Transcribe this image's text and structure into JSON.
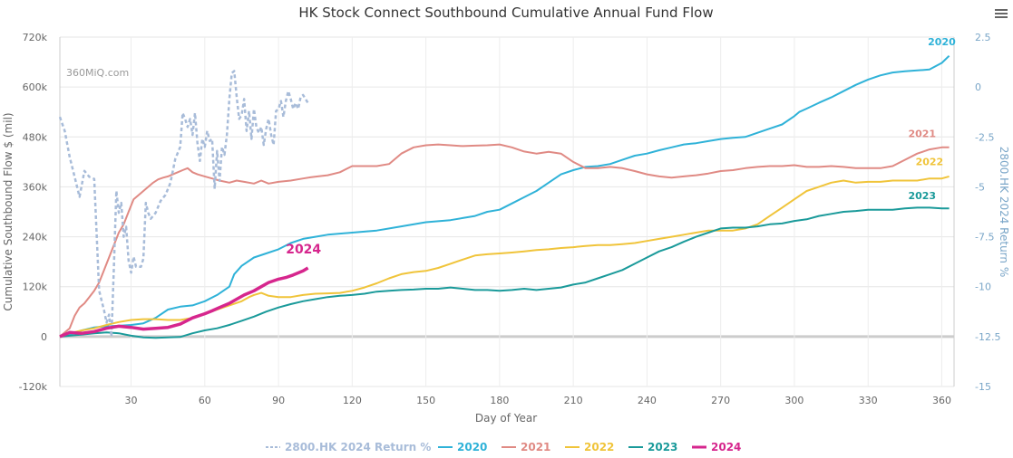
{
  "chart_data": {
    "type": "line",
    "title": "HK Stock Connect Southbound Cumulative Annual Fund Flow",
    "credit": "360MiQ.com",
    "xlabel": "Day of Year",
    "ylabel": "Cumulative Southbound Flow $ (mil)",
    "y2label": "2800.HK 2024 Return %",
    "xlim": [
      1,
      365
    ],
    "ylim": [
      -120000,
      720000
    ],
    "y2lim": [
      -15,
      2.5
    ],
    "x_ticks": [
      30,
      60,
      90,
      120,
      150,
      180,
      210,
      240,
      270,
      300,
      330,
      360
    ],
    "y_ticks": [
      {
        "v": -120000,
        "label": "-120k"
      },
      {
        "v": 0,
        "label": "0"
      },
      {
        "v": 120000,
        "label": "120k"
      },
      {
        "v": 240000,
        "label": "240k"
      },
      {
        "v": 360000,
        "label": "360k"
      },
      {
        "v": 480000,
        "label": "480k"
      },
      {
        "v": 600000,
        "label": "600k"
      },
      {
        "v": 720000,
        "label": "720k"
      }
    ],
    "y2_ticks": [
      {
        "v": -15,
        "label": "-15"
      },
      {
        "v": -12.5,
        "label": "-12.5"
      },
      {
        "v": -10,
        "label": "-10"
      },
      {
        "v": -7.5,
        "label": "-7.5"
      },
      {
        "v": -5,
        "label": "-5"
      },
      {
        "v": -2.5,
        "label": "-2.5"
      },
      {
        "v": 0,
        "label": "0"
      },
      {
        "v": 2.5,
        "label": "2.5"
      }
    ],
    "legend_position": "bottom-center",
    "series": [
      {
        "name": "2800.HK 2024 Return %",
        "axis": "right",
        "color": "#a8bcd9",
        "dash": true,
        "x": [
          1,
          3,
          5,
          7,
          9,
          11,
          13,
          15,
          17,
          19,
          20,
          21,
          22,
          23,
          24,
          25,
          26,
          27,
          28,
          29,
          30,
          31,
          32,
          33,
          34,
          35,
          36,
          37,
          38,
          40,
          42,
          44,
          46,
          48,
          50,
          51,
          52,
          53,
          54,
          55,
          56,
          57,
          58,
          59,
          60,
          61,
          62,
          63,
          64,
          65,
          66,
          67,
          68,
          69,
          70,
          71,
          72,
          73,
          74,
          75,
          76,
          77,
          78,
          79,
          80,
          81,
          82,
          83,
          84,
          85,
          86,
          87,
          88,
          89,
          90,
          91,
          92,
          93,
          94,
          95,
          96,
          97,
          98,
          99,
          100,
          101,
          102
        ],
        "y": [
          -1.5,
          -2.2,
          -3.5,
          -4.5,
          -5.5,
          -4.2,
          -4.5,
          -4.6,
          -10.2,
          -11.2,
          -11.8,
          -11.4,
          -12.5,
          -9.0,
          -5.2,
          -6.3,
          -5.8,
          -7.5,
          -7.0,
          -8.7,
          -9.3,
          -8.5,
          -9.0,
          -9.0,
          -9.0,
          -8.6,
          -5.8,
          -6.3,
          -6.6,
          -6.3,
          -5.7,
          -5.4,
          -4.8,
          -3.6,
          -3.0,
          -1.3,
          -1.6,
          -2.0,
          -1.6,
          -2.4,
          -1.3,
          -2.8,
          -3.7,
          -2.6,
          -3.0,
          -2.2,
          -2.7,
          -2.6,
          -5.1,
          -3.2,
          -4.7,
          -3.0,
          -3.4,
          -2.4,
          -0.6,
          0.7,
          0.8,
          -0.5,
          -1.6,
          -1.4,
          -0.6,
          -2.2,
          -1.2,
          -2.6,
          -1.1,
          -2.0,
          -2.3,
          -2.0,
          -2.9,
          -2.1,
          -1.6,
          -2.4,
          -2.9,
          -1.2,
          -1.1,
          -0.7,
          -1.5,
          -0.7,
          -0.2,
          -0.6,
          -1.1,
          -0.8,
          -1.1,
          -0.5,
          -0.4,
          -0.6,
          -0.8
        ]
      },
      {
        "name": "2020",
        "axis": "left",
        "color": "#2fb2d8",
        "x": [
          1,
          5,
          10,
          15,
          20,
          25,
          30,
          35,
          40,
          45,
          50,
          55,
          60,
          65,
          70,
          72,
          75,
          80,
          85,
          90,
          95,
          100,
          105,
          110,
          120,
          130,
          140,
          150,
          160,
          165,
          170,
          175,
          180,
          185,
          190,
          195,
          200,
          205,
          210,
          215,
          220,
          225,
          230,
          235,
          240,
          245,
          250,
          255,
          260,
          265,
          270,
          275,
          280,
          285,
          290,
          295,
          300,
          302,
          305,
          310,
          315,
          320,
          325,
          330,
          335,
          340,
          345,
          350,
          355,
          360,
          363
        ],
        "y": [
          0,
          5000,
          15000,
          22000,
          25000,
          26000,
          28000,
          32000,
          45000,
          65000,
          72000,
          75000,
          85000,
          100000,
          120000,
          150000,
          170000,
          190000,
          200000,
          210000,
          225000,
          235000,
          240000,
          245000,
          250000,
          255000,
          265000,
          275000,
          280000,
          285000,
          290000,
          300000,
          305000,
          320000,
          335000,
          350000,
          370000,
          390000,
          400000,
          408000,
          410000,
          415000,
          425000,
          435000,
          440000,
          448000,
          455000,
          462000,
          465000,
          470000,
          475000,
          478000,
          480000,
          490000,
          500000,
          510000,
          530000,
          540000,
          548000,
          562000,
          575000,
          590000,
          605000,
          618000,
          628000,
          635000,
          638000,
          640000,
          642000,
          658000,
          675000
        ]
      },
      {
        "name": "2021",
        "axis": "left",
        "color": "#e08a84",
        "x": [
          1,
          3,
          5,
          7,
          9,
          11,
          13,
          15,
          17,
          19,
          21,
          23,
          25,
          27,
          29,
          31,
          33,
          35,
          37,
          39,
          41,
          43,
          45,
          47,
          49,
          51,
          53,
          55,
          57,
          60,
          63,
          66,
          70,
          73,
          76,
          80,
          83,
          86,
          90,
          95,
          100,
          103,
          106,
          110,
          115,
          120,
          125,
          130,
          135,
          140,
          145,
          150,
          155,
          160,
          165,
          170,
          175,
          180,
          185,
          190,
          195,
          200,
          205,
          210,
          215,
          220,
          225,
          230,
          235,
          240,
          245,
          250,
          255,
          260,
          265,
          270,
          275,
          280,
          285,
          290,
          295,
          300,
          305,
          310,
          315,
          320,
          325,
          330,
          335,
          340,
          345,
          350,
          355,
          360,
          363
        ],
        "y": [
          0,
          10000,
          20000,
          50000,
          70000,
          80000,
          95000,
          110000,
          130000,
          160000,
          190000,
          220000,
          250000,
          270000,
          300000,
          330000,
          340000,
          350000,
          360000,
          370000,
          378000,
          382000,
          385000,
          390000,
          395000,
          400000,
          405000,
          395000,
          390000,
          385000,
          380000,
          375000,
          370000,
          375000,
          372000,
          368000,
          375000,
          368000,
          372000,
          375000,
          380000,
          383000,
          385000,
          388000,
          395000,
          410000,
          410000,
          410000,
          415000,
          440000,
          455000,
          460000,
          462000,
          460000,
          458000,
          459000,
          460000,
          462000,
          455000,
          445000,
          440000,
          444000,
          440000,
          420000,
          405000,
          405000,
          408000,
          405000,
          398000,
          390000,
          385000,
          382000,
          385000,
          388000,
          392000,
          398000,
          400000,
          405000,
          408000,
          410000,
          410000,
          412000,
          408000,
          408000,
          410000,
          408000,
          405000,
          405000,
          405000,
          410000,
          425000,
          440000,
          450000,
          455000,
          455000
        ]
      },
      {
        "name": "2022",
        "axis": "left",
        "color": "#f0c43a",
        "x": [
          1,
          5,
          10,
          15,
          20,
          25,
          30,
          35,
          40,
          45,
          50,
          55,
          60,
          65,
          70,
          75,
          78,
          80,
          83,
          86,
          90,
          95,
          100,
          105,
          110,
          115,
          120,
          125,
          130,
          135,
          140,
          145,
          150,
          155,
          160,
          165,
          170,
          175,
          180,
          185,
          190,
          195,
          200,
          205,
          210,
          215,
          220,
          225,
          230,
          235,
          240,
          245,
          250,
          255,
          260,
          265,
          270,
          275,
          280,
          285,
          290,
          295,
          300,
          305,
          310,
          315,
          320,
          325,
          330,
          335,
          340,
          345,
          350,
          355,
          360,
          363
        ],
        "y": [
          0,
          8000,
          15000,
          20000,
          28000,
          35000,
          40000,
          42000,
          42000,
          40000,
          40000,
          45000,
          55000,
          65000,
          75000,
          85000,
          95000,
          100000,
          105000,
          98000,
          95000,
          95000,
          100000,
          103000,
          104000,
          105000,
          110000,
          118000,
          128000,
          140000,
          150000,
          155000,
          158000,
          165000,
          175000,
          185000,
          195000,
          198000,
          200000,
          202000,
          205000,
          208000,
          210000,
          213000,
          215000,
          218000,
          220000,
          220000,
          222000,
          225000,
          230000,
          235000,
          240000,
          245000,
          250000,
          255000,
          255000,
          255000,
          260000,
          270000,
          290000,
          310000,
          330000,
          350000,
          360000,
          370000,
          375000,
          370000,
          372000,
          372000,
          375000,
          375000,
          375000,
          380000,
          380000,
          385000
        ]
      },
      {
        "name": "2023",
        "axis": "left",
        "color": "#1a9a9a",
        "x": [
          1,
          5,
          10,
          15,
          20,
          25,
          30,
          35,
          40,
          45,
          50,
          55,
          60,
          65,
          70,
          75,
          80,
          85,
          90,
          95,
          100,
          105,
          110,
          115,
          120,
          125,
          130,
          135,
          140,
          145,
          150,
          155,
          160,
          165,
          170,
          175,
          180,
          185,
          190,
          195,
          200,
          205,
          210,
          215,
          220,
          225,
          230,
          235,
          240,
          245,
          250,
          255,
          260,
          265,
          270,
          275,
          280,
          285,
          290,
          295,
          300,
          305,
          310,
          315,
          320,
          325,
          330,
          335,
          340,
          345,
          350,
          355,
          360,
          363
        ],
        "y": [
          0,
          2000,
          5000,
          8000,
          10000,
          8000,
          2000,
          -2000,
          -3000,
          -2000,
          -1000,
          8000,
          15000,
          20000,
          28000,
          38000,
          48000,
          60000,
          70000,
          78000,
          85000,
          90000,
          95000,
          98000,
          100000,
          103000,
          108000,
          110000,
          112000,
          113000,
          115000,
          115000,
          118000,
          115000,
          112000,
          112000,
          110000,
          112000,
          115000,
          112000,
          115000,
          118000,
          125000,
          130000,
          140000,
          150000,
          160000,
          175000,
          190000,
          205000,
          215000,
          228000,
          240000,
          250000,
          260000,
          262000,
          262000,
          265000,
          270000,
          272000,
          278000,
          282000,
          290000,
          295000,
          300000,
          302000,
          305000,
          305000,
          305000,
          308000,
          310000,
          310000,
          308000,
          308000
        ]
      },
      {
        "name": "2024",
        "axis": "left",
        "color": "#d6268d",
        "bold": true,
        "x": [
          1,
          5,
          10,
          15,
          20,
          25,
          30,
          35,
          40,
          45,
          50,
          55,
          60,
          63,
          66,
          70,
          73,
          76,
          80,
          83,
          86,
          90,
          93,
          96,
          100,
          102
        ],
        "y": [
          0,
          10000,
          8000,
          12000,
          20000,
          25000,
          22000,
          18000,
          20000,
          22000,
          30000,
          45000,
          55000,
          62000,
          70000,
          80000,
          90000,
          100000,
          110000,
          120000,
          130000,
          138000,
          142000,
          148000,
          158000,
          165000
        ]
      }
    ],
    "end_labels": [
      {
        "series": "2020",
        "text": "2020",
        "x": 360,
        "y": 700000
      },
      {
        "series": "2021",
        "text": "2021",
        "x": 352,
        "y": 480000
      },
      {
        "series": "2022",
        "text": "2022",
        "x": 355,
        "y": 412000
      },
      {
        "series": "2023",
        "text": "2023",
        "x": 352,
        "y": 330000
      },
      {
        "series": "2024",
        "text": "2024",
        "x": 93,
        "y": 200000
      }
    ]
  }
}
